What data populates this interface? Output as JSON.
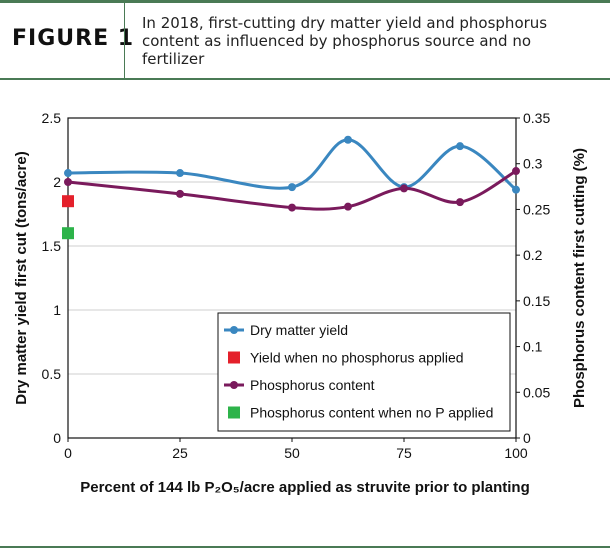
{
  "figure": {
    "label": "FIGURE 1",
    "title": "In 2018, first-cutting dry matter yield and phosphorus content as influenced by phosphorus source and no fertilizer"
  },
  "chart_data": {
    "type": "line",
    "xlabel": "Percent of 144 lb P₂O₅/acre applied as struvite prior to planting",
    "ylabel": "Dry matter yield first cut (tons/acre)",
    "y2label": "Phosphorus content first cutting (%)",
    "xlim": [
      0,
      100
    ],
    "ylim": [
      0,
      2.5
    ],
    "y2lim": [
      0,
      0.35
    ],
    "xticks": [
      "0",
      "25",
      "50",
      "75",
      "100"
    ],
    "yticks": [
      "0",
      "0.5",
      "1",
      "1.5",
      "2",
      "2.5"
    ],
    "y2ticks": [
      "0",
      "0.05",
      "0.1",
      "0.15",
      "0.2",
      "0.25",
      "0.3",
      "0.35"
    ],
    "legend_position": "bottom-right",
    "series": [
      {
        "name": "Dry matter yield",
        "axis": "left",
        "color": "#3a87c0",
        "marker": "circle",
        "x": [
          0,
          25,
          50,
          62.5,
          75,
          87.5,
          100
        ],
        "y": [
          2.07,
          2.07,
          1.96,
          2.33,
          1.96,
          2.28,
          1.94
        ]
      },
      {
        "name": "Yield when no phosphorus applied",
        "axis": "left",
        "color": "#e4202b",
        "marker": "square",
        "x": [
          0
        ],
        "y": [
          1.85
        ]
      },
      {
        "name": "Phosphorus content",
        "axis": "right",
        "color": "#7a1a5c",
        "marker": "circle",
        "x": [
          0,
          25,
          50,
          62.5,
          75,
          87.5,
          100
        ],
        "y": [
          0.28,
          0.267,
          0.252,
          0.253,
          0.273,
          0.258,
          0.292
        ]
      },
      {
        "name": "Phosphorus content when no P applied",
        "axis": "right",
        "color": "#2db34a",
        "marker": "square",
        "x": [
          0
        ],
        "y": [
          0.224
        ]
      }
    ]
  }
}
